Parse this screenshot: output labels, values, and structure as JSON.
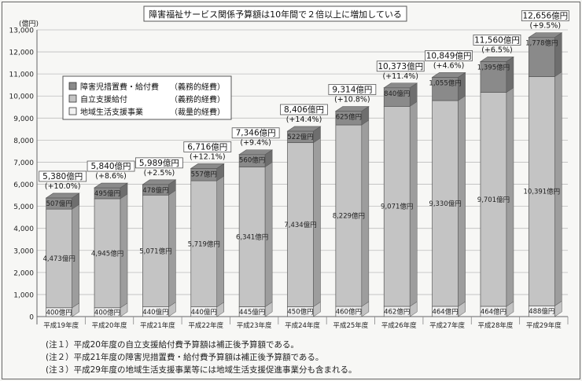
{
  "chart_data": {
    "type": "bar",
    "stacked": true,
    "title": "障害福祉サービス関係予算額は10年間で２倍以上に増加している",
    "unit_label": "(億円)",
    "ylim": [
      0,
      13000
    ],
    "yticks": [
      "0",
      "1,000",
      "2,000",
      "3,000",
      "4,000",
      "5,000",
      "6,000",
      "7,000",
      "8,000",
      "9,000",
      "10,000",
      "11,000",
      "12,000",
      "13,000"
    ],
    "grid": true,
    "legend_position": "top-left",
    "categories": [
      "平成19年度",
      "平成20年度",
      "平成21年度",
      "平成22年度",
      "平成23年度",
      "平成24年度",
      "平成25年度",
      "平成26年度",
      "平成27年度",
      "平成28年度",
      "平成29年度"
    ],
    "series": [
      {
        "name": "地域生活支援事業",
        "tag": "（裁量的経費）",
        "color": "#f2f2f2",
        "values": [
          400,
          400,
          440,
          440,
          445,
          450,
          460,
          462,
          464,
          464,
          488
        ],
        "labels": [
          "400億円",
          "400億円",
          "440億円",
          "440億円",
          "445億円",
          "450億円",
          "460億円",
          "462億円",
          "464億円",
          "464億円",
          "488億円"
        ]
      },
      {
        "name": "自立支援給付",
        "tag": "（義務的経費）",
        "color": "#c4c4c4",
        "values": [
          4473,
          4945,
          5071,
          5719,
          6341,
          7434,
          8229,
          9071,
          9330,
          9701,
          10391
        ],
        "labels": [
          "4,473億円",
          "4,945億円",
          "5,071億円",
          "5,719億円",
          "6,341億円",
          "7,434億円",
          "8,229億円",
          "9,071億円",
          "9,330億円",
          "9,701億円",
          "10,391億円"
        ]
      },
      {
        "name": "障害児措置費・給付費",
        "tag": "（義務的経費）",
        "color": "#8a8a8a",
        "values": [
          507,
          495,
          478,
          557,
          560,
          522,
          625,
          840,
          1055,
          1395,
          1778
        ],
        "labels": [
          "507億円",
          "495億円",
          "478億円",
          "557億円",
          "560億円",
          "522億円",
          "625億円",
          "840億円",
          "1,055億円",
          "1,395億円",
          "1,778億円"
        ]
      }
    ],
    "totals": [
      5380,
      5840,
      5989,
      6716,
      7346,
      8406,
      9314,
      10373,
      10849,
      11560,
      12656
    ],
    "total_labels": [
      "5,380億円",
      "5,840億円",
      "5,989億円",
      "6,716億円",
      "7,346億円",
      "8,406億円",
      "9,314億円",
      "10,373億円",
      "10,849億円",
      "11,560億円",
      "12,656億円"
    ],
    "growth_labels": [
      "(+10.0%)",
      "(+8.6%)",
      "(+2.5%)",
      "(+12.1%)",
      "(+9.4%)",
      "(+14.4%)",
      "(+10.8%)",
      "(+11.4%)",
      "(+4.6%)",
      "(+6.5%)",
      "(+9.5%)"
    ]
  },
  "notes": [
    "(注１）平成20年度の自立支援給付費予算額は補正後予算額である。",
    "(注２）平成21年度の障害児措置費・給付費予算額は補正後予算額である。",
    "(注３）平成29年度の地域生活支援事業等には地域生活支援促進事業分も含まれる。"
  ]
}
